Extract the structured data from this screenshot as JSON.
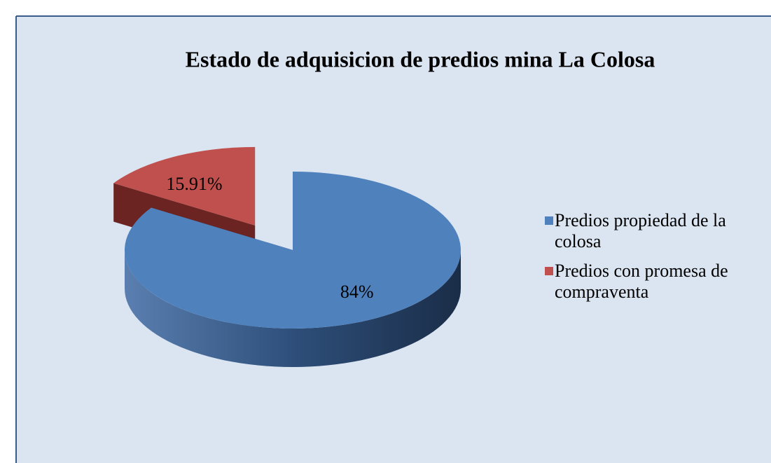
{
  "chart_data": {
    "type": "pie",
    "three_d": true,
    "title": "Estado de adquisicion de predios mina La Colosa",
    "categories": [
      "Predios propiedad de la colosa",
      "Predios con promesa de compraventa"
    ],
    "values": [
      84,
      15.91
    ],
    "value_labels": [
      "84%",
      "15.91%"
    ],
    "colors": [
      "#4f81bd",
      "#c0504d"
    ],
    "legend": "right"
  }
}
